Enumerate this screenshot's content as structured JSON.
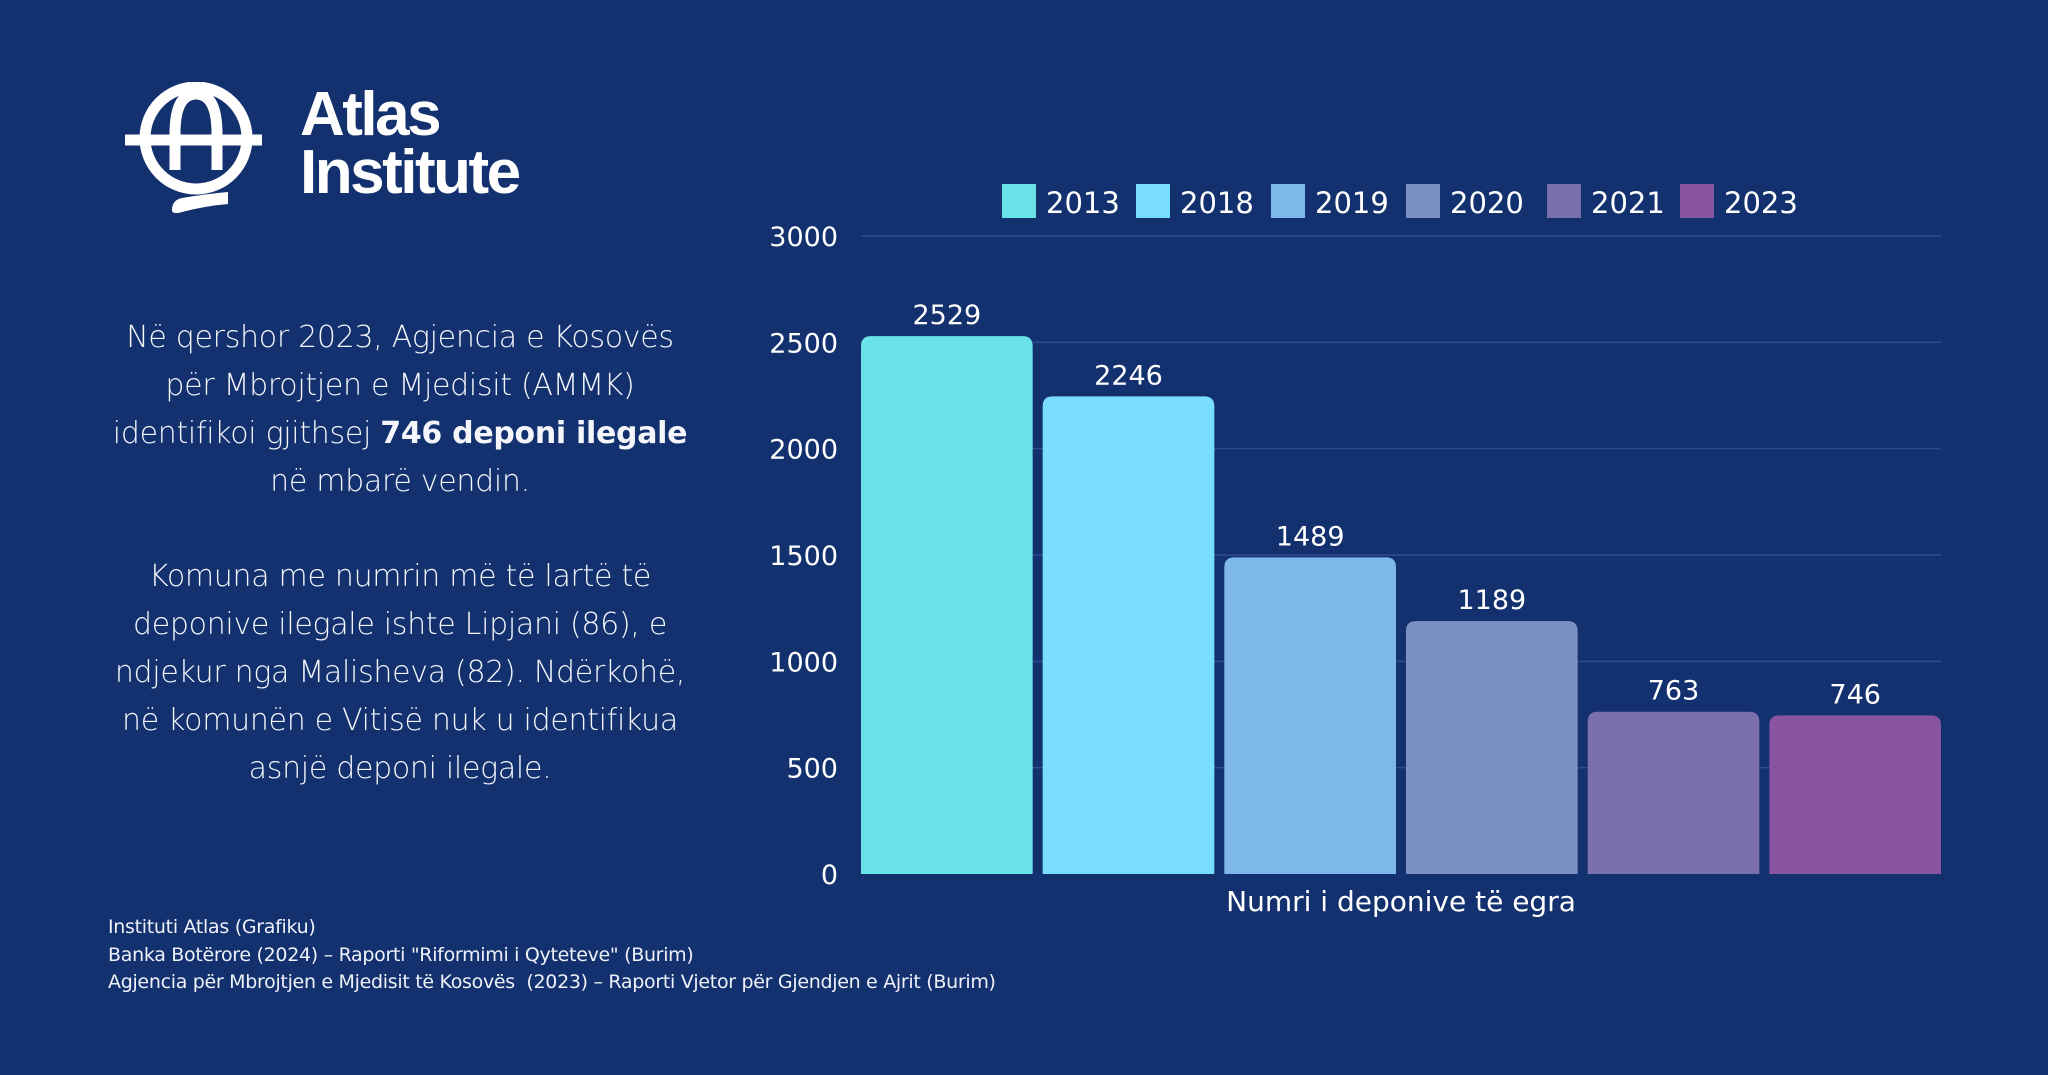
{
  "brand": {
    "name_line1": "Atlas",
    "name_line2": "Institute",
    "logo_icon": "globe-a-logo-icon"
  },
  "blurb": {
    "p1_prefix": "Në qershor 2023, Agjencia e Kosovës për Mbrojtjen e Mjedisit (AMMK) identifikoi gjithsej ",
    "p1_bold": "746 deponi ilegale",
    "p1_suffix": " në mbarë vendin.",
    "p2": "Komuna me numrin më të lartë të deponive ilegale ishte Lipjani (86), e ndjekur nga Malisheva (82). Ndërkohë, në komunën e Vitisë nuk u identifikua asnjë deponi ilegale."
  },
  "sources": [
    "Instituti Atlas (Grafiku)",
    "Banka Botërore (2024) – Raporti \"Riformimi i Qyteteve\" (Burim)",
    "Agjencia për Mbrojtjen e Mjedisit të Kosovës  (2023) – Raporti Vjetor për Gjendjen e Ajrit (Burim)"
  ],
  "colors": {
    "background": "#13316F",
    "gridline": "#2E4D8F"
  },
  "chart_data": {
    "type": "bar",
    "title": "",
    "xlabel": "Numri i deponive të egra",
    "ylabel": "",
    "ylim": [
      0,
      3000
    ],
    "yticks": [
      0,
      500,
      1000,
      1500,
      2000,
      2500,
      3000
    ],
    "grid": true,
    "legend_position": "top",
    "categories": [
      "Numri i deponive të egra"
    ],
    "series": [
      {
        "name": "2013",
        "values": [
          2529
        ],
        "color": "#6AE3E8"
      },
      {
        "name": "2018",
        "values": [
          2246
        ],
        "color": "#79DDFD"
      },
      {
        "name": "2019",
        "values": [
          1489
        ],
        "color": "#7DB8E8"
      },
      {
        "name": "2020",
        "values": [
          1189
        ],
        "color": "#7B91C3"
      },
      {
        "name": "2021",
        "values": [
          763
        ],
        "color": "#7A6EAB"
      },
      {
        "name": "2023",
        "values": [
          746
        ],
        "color": "#8955A0"
      }
    ]
  }
}
